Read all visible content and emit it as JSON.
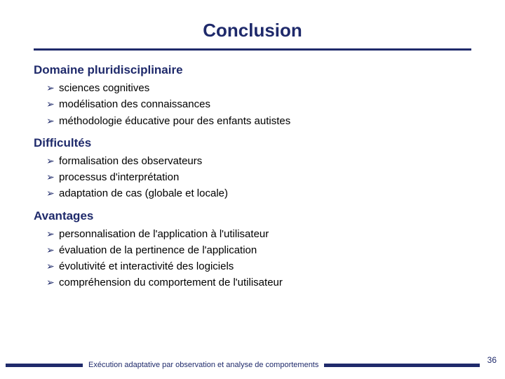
{
  "colors": {
    "primary": "#1f2a6b",
    "text": "#000000",
    "background": "#ffffff"
  },
  "typography": {
    "title_fontsize": 26,
    "heading_fontsize": 17,
    "body_fontsize": 15,
    "footer_fontsize": 11,
    "pagenum_fontsize": 12,
    "font_family": "Verdana"
  },
  "title": "Conclusion",
  "sections": [
    {
      "heading": "Domaine pluridisciplinaire",
      "items": [
        "sciences cognitives",
        "modélisation des connaissances",
        "méthodologie éducative pour des enfants autistes"
      ]
    },
    {
      "heading": "Difficultés",
      "items": [
        "formalisation des observateurs",
        "processus d'interprétation",
        "adaptation de cas (globale et locale)"
      ]
    },
    {
      "heading": "Avantages",
      "items": [
        "personnalisation de l'application à l'utilisateur",
        "évaluation de la pertinence de l'application",
        "évolutivité et interactivité des logiciels",
        "compréhension du comportement de l'utilisateur"
      ]
    }
  ],
  "footer_text": "Exécution adaptative par observation et analyse de comportements",
  "page_number": "36",
  "bullet_glyph": "➢"
}
